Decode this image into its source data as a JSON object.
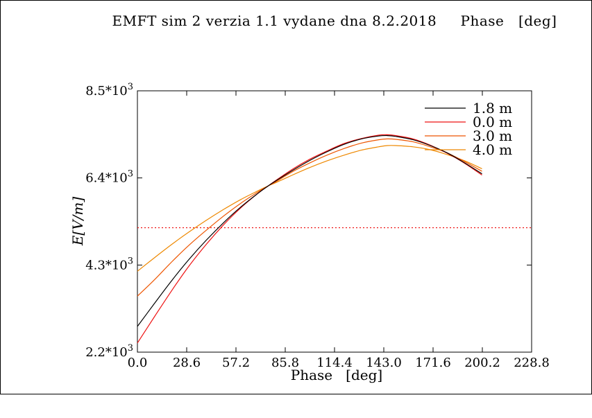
{
  "chart_data": {
    "type": "line",
    "title": "EMFT sim 2 verzia 1.1 vydane dna 8.2.2018     Phase   [deg]",
    "xlabel": "Phase   [deg]",
    "ylabel": "E[V/m]",
    "xlim": [
      0,
      228.8
    ],
    "ylim": [
      2200,
      8500
    ],
    "xticks": [
      "0.0",
      "28.6",
      "57.2",
      "85.8",
      "114.4",
      "143.0",
      "171.6",
      "200.2",
      "228.8"
    ],
    "xtick_values": [
      0,
      28.6,
      57.2,
      85.8,
      114.4,
      143.0,
      171.6,
      200.2,
      228.8
    ],
    "yticks": [
      {
        "mantissa": "8.5",
        "value": 8500
      },
      {
        "mantissa": "6.4",
        "value": 6400
      },
      {
        "mantissa": "4.3",
        "value": 4300
      },
      {
        "mantissa": "2.2",
        "value": 2200
      }
    ],
    "ytick_exp_prefix": "*10",
    "ytick_exp": "3",
    "legend_position": "top-right",
    "x": [
      0,
      10,
      20,
      30,
      40,
      50,
      60,
      70,
      76,
      80,
      90,
      100,
      110,
      120,
      130,
      140,
      145,
      150,
      160,
      170,
      180,
      190,
      200
    ],
    "series": [
      {
        "name": "1.8 m",
        "color": "#000000",
        "values": [
          2820,
          3380,
          3930,
          4440,
          4900,
          5320,
          5700,
          6030,
          6210,
          6320,
          6580,
          6820,
          7030,
          7210,
          7340,
          7410,
          7420,
          7400,
          7320,
          7180,
          7000,
          6760,
          6500
        ]
      },
      {
        "name": "0.0 m",
        "color": "#ee1111",
        "values": [
          2420,
          3060,
          3690,
          4280,
          4800,
          5270,
          5680,
          6030,
          6210,
          6330,
          6610,
          6850,
          7050,
          7230,
          7350,
          7430,
          7440,
          7420,
          7340,
          7190,
          6990,
          6750,
          6470
        ]
      },
      {
        "name": "3.0 m",
        "color": "#ee5500",
        "values": [
          3550,
          3950,
          4380,
          4780,
          5140,
          5480,
          5790,
          6060,
          6210,
          6300,
          6550,
          6760,
          6950,
          7110,
          7240,
          7320,
          7340,
          7330,
          7270,
          7150,
          7000,
          6790,
          6560
        ]
      },
      {
        "name": "4.0 m",
        "color": "#ee8800",
        "values": [
          4150,
          4480,
          4800,
          5100,
          5380,
          5640,
          5880,
          6090,
          6210,
          6280,
          6470,
          6650,
          6810,
          6950,
          7070,
          7150,
          7180,
          7180,
          7150,
          7080,
          6960,
          6810,
          6620
        ]
      }
    ],
    "reference_line": {
      "y": 5200,
      "color": "#ee1111",
      "style": "dotted"
    }
  }
}
